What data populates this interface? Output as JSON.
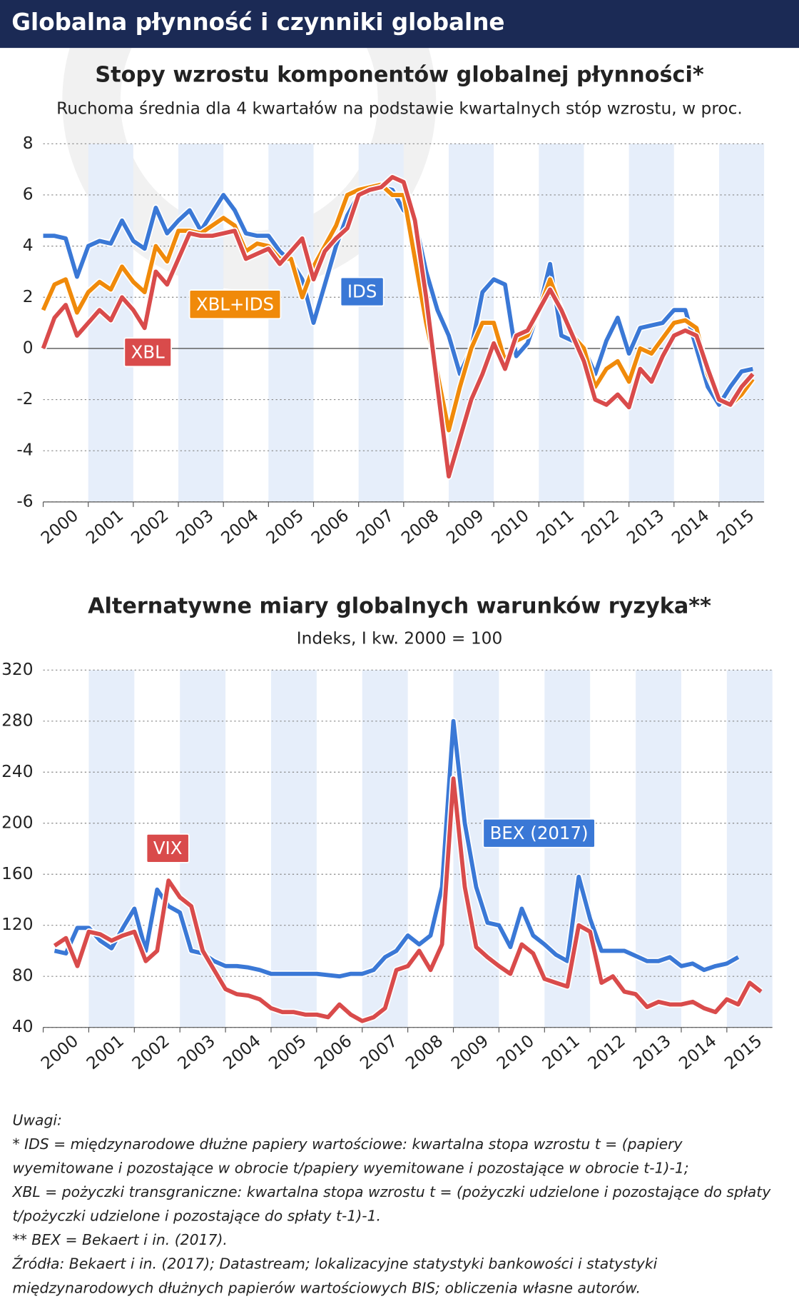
{
  "header": {
    "title": "Globalna płynność i czynniki globalne"
  },
  "chart_data": [
    {
      "type": "line",
      "title": "Stopy wzrostu komponentów globalnej płynności*",
      "subtitle": "Ruchoma średnia dla 4 kwartałów na podstawie kwartalnych stóp wzrostu, w proc.",
      "x": [
        2000,
        2000.25,
        2000.5,
        2000.75,
        2001,
        2001.25,
        2001.5,
        2001.75,
        2002,
        2002.25,
        2002.5,
        2002.75,
        2003,
        2003.25,
        2003.5,
        2003.75,
        2004,
        2004.25,
        2004.5,
        2004.75,
        2005,
        2005.25,
        2005.5,
        2005.75,
        2006,
        2006.25,
        2006.5,
        2006.75,
        2007,
        2007.25,
        2007.5,
        2007.75,
        2008,
        2008.25,
        2008.5,
        2008.75,
        2009,
        2009.25,
        2009.5,
        2009.75,
        2010,
        2010.25,
        2010.5,
        2010.75,
        2011,
        2011.25,
        2011.5,
        2011.75,
        2012,
        2012.25,
        2012.5,
        2012.75,
        2013,
        2013.25,
        2013.5,
        2013.75,
        2014,
        2014.25,
        2014.5,
        2014.75,
        2015,
        2015.25,
        2015.5,
        2015.75
      ],
      "series": [
        {
          "name": "IDS",
          "color": "#3a78d6",
          "values": [
            4.4,
            4.4,
            4.3,
            2.8,
            4.0,
            4.2,
            4.1,
            5.0,
            4.2,
            3.9,
            5.5,
            4.5,
            5.0,
            5.4,
            4.6,
            5.3,
            6.0,
            5.4,
            4.5,
            4.4,
            4.4,
            3.8,
            3.4,
            2.7,
            1.0,
            2.5,
            4.0,
            5.2,
            6.0,
            6.2,
            6.3,
            6.2,
            5.4,
            5.0,
            3.0,
            1.5,
            0.5,
            -1.0,
            0,
            2.2,
            2.7,
            2.5,
            -0.3,
            0.2,
            1.5,
            3.3,
            0.5,
            0.3,
            0,
            -1.0,
            0.3,
            1.2,
            -0.2,
            0.8,
            0.9,
            1.0,
            1.5,
            1.5,
            0,
            -1.5,
            -2.2,
            -1.5,
            -0.9,
            -0.8
          ]
        },
        {
          "name": "XBL+IDS",
          "color": "#f08a0a",
          "values": [
            1.5,
            2.5,
            2.7,
            1.4,
            2.2,
            2.6,
            2.3,
            3.2,
            2.6,
            2.2,
            4.0,
            3.4,
            4.6,
            4.6,
            4.5,
            4.8,
            5.1,
            4.8,
            3.8,
            4.1,
            4.0,
            3.5,
            3.5,
            2.0,
            3.2,
            4.0,
            4.8,
            6.0,
            6.2,
            6.3,
            6.4,
            6.0,
            6.0,
            3.5,
            1.0,
            -1.0,
            -3.2,
            -1.5,
            0,
            1.0,
            1.0,
            -0.5,
            0.3,
            0.5,
            1.5,
            2.7,
            1.5,
            0.5,
            0,
            -1.5,
            -0.8,
            -0.5,
            -1.3,
            0,
            -0.2,
            0.4,
            1.0,
            1.1,
            0.8,
            -1.0,
            -2.0,
            -2.2,
            -1.8,
            -1.2
          ]
        },
        {
          "name": "XBL",
          "color": "#d94b4b",
          "values": [
            0,
            1.2,
            1.7,
            0.5,
            1.0,
            1.5,
            1.1,
            2.0,
            1.5,
            0.8,
            3.0,
            2.5,
            3.5,
            4.5,
            4.4,
            4.4,
            4.5,
            4.6,
            3.5,
            3.7,
            3.9,
            3.3,
            3.8,
            4.3,
            2.7,
            3.8,
            4.3,
            4.7,
            6.0,
            6.2,
            6.3,
            6.7,
            6.5,
            5.0,
            2.0,
            -1.5,
            -5.0,
            -3.5,
            -2.0,
            -1.0,
            0.2,
            -0.8,
            0.5,
            0.7,
            1.5,
            2.3,
            1.5,
            0.5,
            -0.5,
            -2.0,
            -2.2,
            -1.8,
            -2.3,
            -0.8,
            -1.3,
            -0.3,
            0.5,
            0.7,
            0.5,
            -0.8,
            -2.0,
            -2.2,
            -1.5,
            -1.0
          ]
        }
      ],
      "xlim": [
        2000,
        2016
      ],
      "xticks": [
        2000,
        2001,
        2002,
        2003,
        2004,
        2005,
        2006,
        2007,
        2008,
        2009,
        2010,
        2011,
        2012,
        2013,
        2014,
        2015
      ],
      "ylim": [
        -6,
        8
      ],
      "yticks": [
        -6,
        -4,
        -2,
        0,
        2,
        4,
        6,
        8
      ],
      "grid": true,
      "bands": true
    },
    {
      "type": "line",
      "title": "Alternatywne miary globalnych warunków ryzyka**",
      "subtitle": "Indeks, I kw. 2000 = 100",
      "x": [
        2000.25,
        2000.5,
        2000.75,
        2001,
        2001.25,
        2001.5,
        2001.75,
        2002,
        2002.25,
        2002.5,
        2002.75,
        2003,
        2003.25,
        2003.5,
        2003.75,
        2004,
        2004.25,
        2004.5,
        2004.75,
        2005,
        2005.25,
        2005.5,
        2005.75,
        2006,
        2006.25,
        2006.5,
        2006.75,
        2007,
        2007.25,
        2007.5,
        2007.75,
        2008,
        2008.25,
        2008.5,
        2008.75,
        2009,
        2009.25,
        2009.5,
        2009.75,
        2010,
        2010.25,
        2010.5,
        2010.75,
        2011,
        2011.25,
        2011.5,
        2011.75,
        2012,
        2012.25,
        2012.5,
        2012.75,
        2013,
        2013.25,
        2013.5,
        2013.75,
        2014,
        2014.25,
        2014.5,
        2014.75,
        2015,
        2015.25,
        2015.5,
        2015.75
      ],
      "series": [
        {
          "name": "BEX (2017)",
          "color": "#3a78d6",
          "values": [
            100,
            98,
            118,
            118,
            108,
            102,
            118,
            133,
            100,
            148,
            135,
            130,
            100,
            98,
            92,
            88,
            88,
            87,
            85,
            82,
            82,
            82,
            82,
            82,
            81,
            80,
            82,
            82,
            85,
            95,
            100,
            112,
            105,
            112,
            150,
            280,
            200,
            150,
            122,
            120,
            103,
            133,
            112,
            105,
            97,
            92,
            158,
            125,
            100,
            100,
            100,
            96,
            92,
            92,
            95,
            88,
            90,
            85,
            88,
            90,
            95,
            null,
            null
          ]
        },
        {
          "name": "VIX",
          "color": "#d94b4b",
          "values": [
            104,
            110,
            88,
            115,
            113,
            108,
            112,
            115,
            92,
            100,
            155,
            142,
            135,
            100,
            85,
            70,
            66,
            65,
            62,
            55,
            52,
            52,
            50,
            50,
            48,
            58,
            50,
            45,
            48,
            55,
            85,
            88,
            100,
            85,
            105,
            235,
            150,
            103,
            95,
            88,
            82,
            105,
            98,
            78,
            75,
            72,
            120,
            115,
            75,
            80,
            68,
            66,
            56,
            60,
            58,
            58,
            60,
            55,
            52,
            62,
            58,
            75,
            68
          ]
        }
      ],
      "xlim": [
        2000,
        2016
      ],
      "xticks": [
        2000,
        2001,
        2002,
        2003,
        2004,
        2005,
        2006,
        2007,
        2008,
        2009,
        2010,
        2011,
        2012,
        2013,
        2014,
        2015
      ],
      "ylim": [
        40,
        320
      ],
      "yticks": [
        40,
        80,
        120,
        160,
        200,
        240,
        280,
        320
      ],
      "grid": true,
      "bands": true
    }
  ],
  "notes": [
    "Uwagi:",
    "* IDS = międzynarodowe dłużne papiery wartościowe: kwartalna stopa wzrostu t = (papiery",
    "wyemitowane i pozostające w obrocie t/papiery wyemitowane i pozostające w obrocie t-1)-1;",
    "XBL = pożyczki transgraniczne: kwartalna stopa wzrostu t = (pożyczki udzielone i pozostające do spłaty",
    "t/pożyczki udzielone i pozostające do spłaty t-1)-1.",
    "** BEX = Bekaert i in. (2017).",
    "Źródła: Bekaert i in. (2017); Datastream; lokalizacyjne statystyki bankowości i statystyki",
    "międzynarodowych dłużnych papierów wartościowych BIS; obliczenia własne autorów."
  ]
}
